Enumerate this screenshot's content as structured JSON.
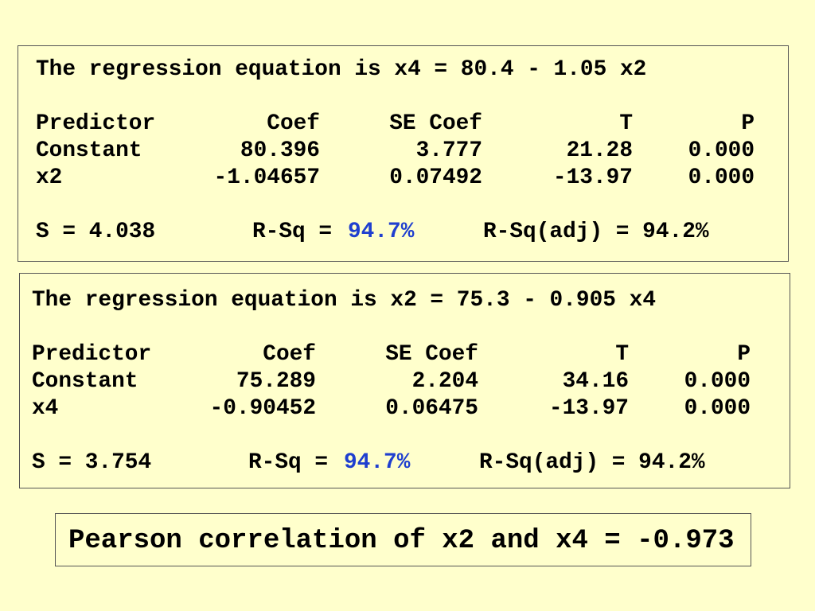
{
  "regressions": [
    {
      "equation": "The regression equation is x4 = 80.4 - 1.05 x2",
      "table": {
        "header": [
          "Predictor",
          "Coef",
          "SE Coef",
          "T",
          "P"
        ],
        "rows": [
          [
            "Constant",
            "80.396",
            "3.777",
            "21.28",
            "0.000"
          ],
          [
            "x2",
            "-1.04657",
            "0.07492",
            "-13.97",
            "0.000"
          ]
        ]
      },
      "summary": {
        "s": "S = 4.038",
        "rsq_label": "R-Sq =",
        "rsq_value": "94.7%",
        "rsq_adj": "R-Sq(adj) = 94.2%"
      }
    },
    {
      "equation": "The regression equation is x2 = 75.3 - 0.905 x4",
      "table": {
        "header": [
          "Predictor",
          "Coef",
          "SE Coef",
          "T",
          "P"
        ],
        "rows": [
          [
            "Constant",
            "75.289",
            "2.204",
            "34.16",
            "0.000"
          ],
          [
            "x4",
            "-0.90452",
            "0.06475",
            "-13.97",
            "0.000"
          ]
        ]
      },
      "summary": {
        "s": "S = 3.754",
        "rsq_label": "R-Sq =",
        "rsq_value": "94.7%",
        "rsq_adj": "R-Sq(adj) = 94.2%"
      }
    }
  ],
  "correlation": "Pearson correlation of x2 and x4 = -0.973"
}
